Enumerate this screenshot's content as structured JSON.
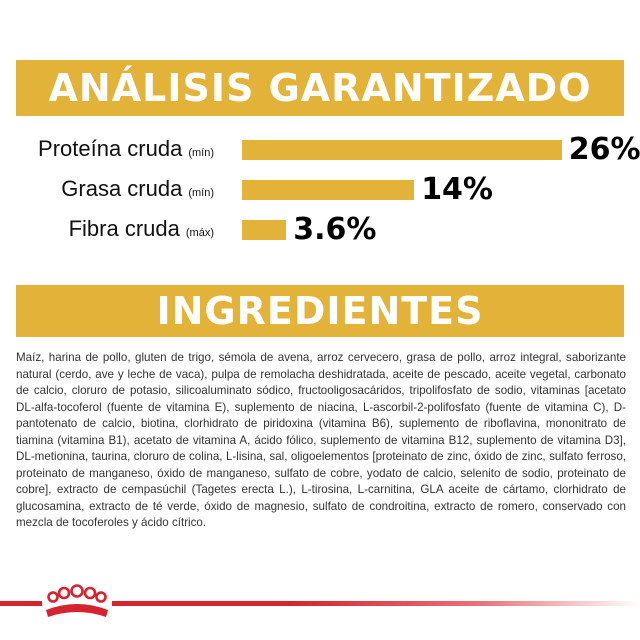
{
  "analysis": {
    "title": "ANÁLISIS GARANTIZADO",
    "rows": [
      {
        "name": "Proteína cruda",
        "qualifier": "(mín)",
        "value": "26%",
        "percent": 26
      },
      {
        "name": "Grasa cruda",
        "qualifier": "(mín)",
        "value": "14%",
        "percent": 14
      },
      {
        "name": "Fibra cruda",
        "qualifier": "(máx)",
        "value": "3.6%",
        "percent": 3.6
      }
    ]
  },
  "ingredients": {
    "title": "INGREDIENTES",
    "text": "Maíz, harina de pollo, gluten de trigo, sémola de avena, arroz cervecero, grasa de pollo, arroz integral, saborizante natural (cerdo, ave y leche de vaca), pulpa de remolacha deshidratada, aceite de pescado, aceite vegetal, carbonato de calcio, cloruro de potasio, silicoaluminato sódico, fructooligosacáridos, tripolifosfato de sodio, vitaminas [acetato DL-alfa-tocoferol (fuente de vitamina E), suplemento de niacina, L-ascorbil-2-polifosfato (fuente de vitamina C), D-pantotenato de calcio, biotina, clorhidrato de piridoxina (vitamina B6), suplemento de riboflavina, mononitrato de tiamina (vitamina B1), acetato de vitamina A, ácido fólico, suplemento de vitamina B12, suplemento de vitamina D3], DL-metionina, taurina, cloruro de colina, L-lisina, sal, oligoelementos [proteinato de zinc, óxido de zinc, sulfato ferroso, proteinato de manganeso, óxido de manganeso, sulfato de cobre, yodato de calcio, selenito de sodio, proteinato de cobre], extracto de cempasúchil (Tagetes erecta L.), L-tirosina, L-carnitina, GLA aceite de cártamo, clorhidrato de glucosamina, extracto de té verde, óxido de magnesio, sulfato de condroitina, extracto de romero, conservado con mezcla de tocoferoles y ácido cítrico."
  },
  "colors": {
    "accent": "#e3b238",
    "brand_red": "#d3242f"
  },
  "footer": {
    "logo_icon": "royal-canin-crown-icon"
  }
}
